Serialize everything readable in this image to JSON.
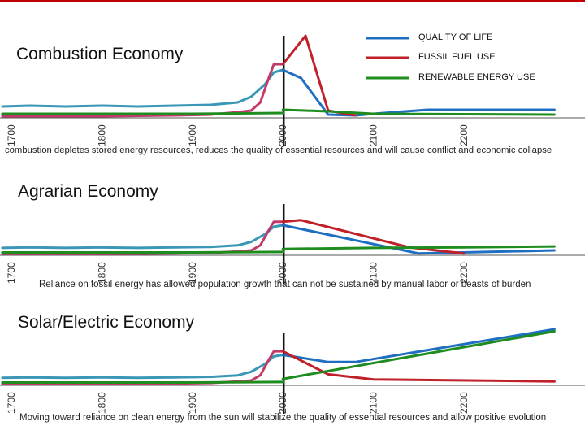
{
  "colors": {
    "quality": "#1f6fc0",
    "historic_quality": "#3a97b5",
    "fossil": "#c0202a",
    "historic_fossil": "#c23a6a",
    "renewable": "#1e8c1e",
    "axis": "#333333"
  },
  "legend": [
    {
      "label": "QUALITY OF LIFE",
      "color": "#1f6fc0"
    },
    {
      "label": "FUSSIL FUEL USE",
      "color": "#c0202a"
    },
    {
      "label": "RENEWABLE ENERGY USE",
      "color": "#1e8c1e"
    }
  ],
  "panels": [
    {
      "title": "Combustion Economy",
      "caption": "combustion depletes stored energy resources, reduces the quality of essential resources and will cause conflict and economic collapse"
    },
    {
      "title": "Agrarian Economy",
      "caption": "Reliance on fossil energy has allowed population growth that can not be sustained by manual labor or  beasts of burden"
    },
    {
      "title": "Solar/Electric Economy",
      "caption": "Moving toward reliance on clean energy from the sun will stabilize the quality of essential resources and allow positive evolution"
    }
  ],
  "chart_data": [
    {
      "type": "line",
      "title": "Combustion Economy",
      "x_tick_labels": [
        "1700",
        "1800",
        "1900",
        "2000",
        "2100",
        "2200"
      ],
      "xlim": [
        1690,
        2310
      ],
      "ylim": [
        0,
        100
      ],
      "present_year": 2000,
      "series": [
        {
          "name": "QUALITY OF LIFE (historic)",
          "color": "#3a97b5",
          "x": [
            1690,
            1720,
            1760,
            1800,
            1840,
            1880,
            1920,
            1950,
            1965,
            1980,
            1990,
            2000
          ],
          "y": [
            13,
            14,
            13,
            14,
            13,
            14,
            15,
            18,
            25,
            40,
            55,
            58
          ]
        },
        {
          "name": "QUALITY OF LIFE",
          "color": "#1f6fc0",
          "x": [
            2000,
            2020,
            2050,
            2080,
            2100,
            2160,
            2300
          ],
          "y": [
            58,
            48,
            3,
            2,
            4,
            9,
            9
          ]
        },
        {
          "name": "FUSSIL FUEL USE (historic)",
          "color": "#c23a6a",
          "x": [
            1690,
            1800,
            1880,
            1920,
            1950,
            1965,
            1975,
            1985,
            1990,
            2000
          ],
          "y": [
            1,
            1,
            2,
            3,
            6,
            8,
            18,
            50,
            65,
            65
          ]
        },
        {
          "name": "FUSSIL FUEL USE",
          "color": "#c0202a",
          "x": [
            2000,
            2025,
            2050,
            2080
          ],
          "y": [
            65,
            100,
            8,
            2
          ]
        },
        {
          "name": "RENEWABLE ENERGY USE (historic)",
          "color": "#1e8c1e",
          "x": [
            1690,
            1800,
            1900,
            2000
          ],
          "y": [
            4,
            4,
            4,
            5
          ]
        },
        {
          "name": "RENEWABLE ENERGY USE",
          "color": "#1e8c1e",
          "x": [
            2000,
            2050,
            2100,
            2300
          ],
          "y": [
            9,
            7,
            4,
            3
          ]
        }
      ]
    },
    {
      "type": "line",
      "title": "Agrarian Economy",
      "x_tick_labels": [
        "1700",
        "1800",
        "1900",
        "2000",
        "2100",
        "2200"
      ],
      "xlim": [
        1690,
        2310
      ],
      "ylim": [
        0,
        100
      ],
      "present_year": 2000,
      "series": [
        {
          "name": "QUALITY OF LIFE (historic)",
          "color": "#3a97b5",
          "x": [
            1690,
            1720,
            1760,
            1800,
            1840,
            1880,
            1920,
            1950,
            1965,
            1980,
            1990,
            2000
          ],
          "y": [
            13,
            14,
            13,
            14,
            13,
            14,
            15,
            18,
            25,
            40,
            55,
            58
          ]
        },
        {
          "name": "QUALITY OF LIFE",
          "color": "#1f6fc0",
          "x": [
            2000,
            2150,
            2300
          ],
          "y": [
            58,
            2,
            8
          ]
        },
        {
          "name": "FUSSIL FUEL USE (historic)",
          "color": "#c23a6a",
          "x": [
            1690,
            1800,
            1880,
            1920,
            1950,
            1965,
            1975,
            1985,
            1990,
            2000
          ],
          "y": [
            1,
            1,
            2,
            3,
            6,
            8,
            18,
            50,
            65,
            65
          ]
        },
        {
          "name": "FUSSIL FUEL USE",
          "color": "#c0202a",
          "x": [
            2000,
            2020,
            2140,
            2200
          ],
          "y": [
            65,
            68,
            14,
            2
          ]
        },
        {
          "name": "RENEWABLE ENERGY USE (historic)",
          "color": "#1e8c1e",
          "x": [
            1690,
            1800,
            1900,
            2000
          ],
          "y": [
            4,
            4,
            4,
            5
          ]
        },
        {
          "name": "RENEWABLE ENERGY USE",
          "color": "#1e8c1e",
          "x": [
            2000,
            2100,
            2200,
            2300
          ],
          "y": [
            11,
            13,
            14,
            16
          ]
        }
      ]
    },
    {
      "type": "line",
      "title": "Solar/Electric Economy",
      "x_tick_labels": [
        "1700",
        "1800",
        "1900",
        "2000",
        "2100",
        "2200"
      ],
      "xlim": [
        1690,
        2310
      ],
      "ylim": [
        0,
        100
      ],
      "present_year": 2000,
      "series": [
        {
          "name": "QUALITY OF LIFE (historic)",
          "color": "#3a97b5",
          "x": [
            1690,
            1720,
            1760,
            1800,
            1840,
            1880,
            1920,
            1950,
            1965,
            1980,
            1990,
            2000
          ],
          "y": [
            13,
            14,
            13,
            14,
            13,
            14,
            15,
            18,
            25,
            40,
            55,
            58
          ]
        },
        {
          "name": "QUALITY OF LIFE",
          "color": "#1f6fc0",
          "x": [
            2000,
            2050,
            2080,
            2300
          ],
          "y": [
            58,
            44,
            44,
            108
          ]
        },
        {
          "name": "FUSSIL FUEL USE (historic)",
          "color": "#c23a6a",
          "x": [
            1690,
            1800,
            1880,
            1920,
            1950,
            1965,
            1975,
            1985,
            1990,
            2000
          ],
          "y": [
            1,
            1,
            2,
            3,
            6,
            8,
            18,
            50,
            65,
            65
          ]
        },
        {
          "name": "FUSSIL FUEL USE",
          "color": "#c0202a",
          "x": [
            2000,
            2050,
            2100,
            2300
          ],
          "y": [
            65,
            20,
            10,
            6
          ]
        },
        {
          "name": "RENEWABLE ENERGY USE (historic)",
          "color": "#1e8c1e",
          "x": [
            1690,
            1800,
            1900,
            2000
          ],
          "y": [
            4,
            4,
            4,
            5
          ]
        },
        {
          "name": "RENEWABLE ENERGY USE",
          "color": "#1e8c1e",
          "x": [
            2000,
            2300
          ],
          "y": [
            11,
            104
          ]
        }
      ]
    }
  ]
}
